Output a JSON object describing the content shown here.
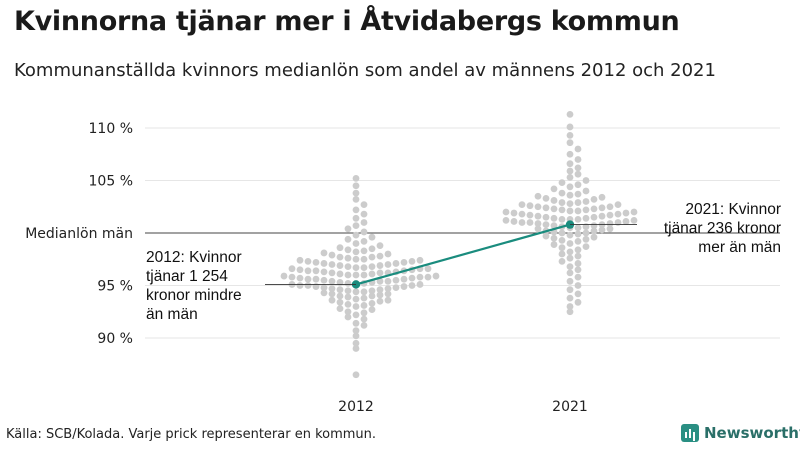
{
  "header": {
    "title": "Kvinnorna tjänar mer i Åtvidabergs kommun",
    "subtitle": "Kommunanställda kvinnors medianlön som andel av männens 2012 och 2021"
  },
  "footer": {
    "source": "Källa: SCB/Kolada. Varje prick representerar en kommun.",
    "brand": "Newsworthy"
  },
  "chart_data": {
    "type": "scatter",
    "title": "Kvinnorna tjänar mer i Åtvidabergs kommun",
    "subtitle": "Kommunanställda kvinnors medianlön som andel av männens 2012 och 2021",
    "categories": [
      "2012",
      "2021"
    ],
    "ylim": [
      86,
      112
    ],
    "y_ticks": [
      {
        "value": 110,
        "label": "110 %"
      },
      {
        "value": 105,
        "label": "105 %"
      },
      {
        "value": 100,
        "label": "Medianlön män"
      },
      {
        "value": 95,
        "label": "95 %"
      },
      {
        "value": 90,
        "label": "90 %"
      }
    ],
    "grid": true,
    "reference_line": {
      "value": 100,
      "label": "Medianlön män"
    },
    "highlight": {
      "name": "Åtvidabergs kommun",
      "color": "#1a8c7e",
      "points": [
        {
          "x": "2012",
          "y": 95.1
        },
        {
          "x": "2021",
          "y": 100.8
        }
      ]
    },
    "annotations": [
      {
        "x": "2012",
        "lines": [
          "2012: Kvinnor",
          "tjänar 1 254",
          "kronor mindre",
          "än män"
        ]
      },
      {
        "x": "2021",
        "lines": [
          "2021: Kvinnor",
          "tjänar 236 kronor",
          "mer än män"
        ]
      }
    ],
    "series": [
      {
        "x": "2012",
        "color": "#cccccc",
        "values": [
          86.5,
          89.0,
          89.5,
          90.2,
          90.7,
          91.2,
          91.4,
          91.8,
          92.0,
          92.2,
          92.4,
          92.5,
          92.7,
          92.8,
          93.0,
          93.1,
          93.2,
          93.3,
          93.4,
          93.5,
          93.6,
          93.6,
          93.7,
          93.8,
          93.9,
          94.0,
          94.0,
          94.1,
          94.2,
          94.2,
          94.3,
          94.4,
          94.4,
          94.5,
          94.5,
          94.6,
          94.6,
          94.7,
          94.7,
          94.8,
          94.8,
          94.9,
          94.9,
          95.0,
          95.0,
          95.0,
          95.1,
          95.1,
          95.2,
          95.2,
          95.2,
          95.3,
          95.3,
          95.4,
          95.4,
          95.4,
          95.5,
          95.5,
          95.6,
          95.6,
          95.6,
          95.7,
          95.7,
          95.8,
          95.8,
          95.8,
          95.9,
          95.9,
          96.0,
          96.0,
          96.0,
          96.1,
          96.1,
          96.2,
          96.2,
          96.2,
          96.3,
          96.3,
          96.4,
          96.4,
          96.4,
          96.5,
          96.5,
          96.6,
          96.6,
          96.6,
          96.7,
          96.7,
          96.8,
          96.8,
          96.9,
          96.9,
          97.0,
          97.0,
          97.1,
          97.1,
          97.2,
          97.2,
          97.3,
          97.3,
          97.4,
          97.4,
          97.5,
          97.5,
          97.6,
          97.7,
          97.7,
          97.8,
          97.9,
          98.0,
          98.1,
          98.2,
          98.3,
          98.4,
          98.5,
          98.6,
          98.8,
          99.0,
          99.2,
          99.4,
          99.6,
          99.8,
          100.1,
          100.4,
          100.7,
          101.0,
          101.4,
          101.8,
          102.2,
          102.7,
          103.2,
          103.8,
          104.5,
          105.2
        ]
      },
      {
        "x": "2021",
        "color": "#cccccc",
        "values": [
          92.5,
          93.0,
          93.4,
          93.8,
          94.2,
          94.6,
          95.0,
          95.4,
          95.8,
          96.2,
          96.5,
          96.8,
          97.1,
          97.3,
          97.6,
          97.8,
          98.0,
          98.2,
          98.4,
          98.6,
          98.7,
          98.9,
          99.0,
          99.2,
          99.3,
          99.4,
          99.5,
          99.6,
          99.7,
          99.8,
          99.9,
          100.0,
          100.0,
          100.1,
          100.2,
          100.2,
          100.3,
          100.4,
          100.4,
          100.5,
          100.5,
          100.6,
          100.6,
          100.7,
          100.7,
          100.8,
          100.8,
          100.9,
          100.9,
          101.0,
          101.0,
          101.0,
          101.1,
          101.1,
          101.2,
          101.2,
          101.3,
          101.3,
          101.3,
          101.4,
          101.4,
          101.5,
          101.5,
          101.6,
          101.6,
          101.7,
          101.7,
          101.8,
          101.8,
          101.9,
          101.9,
          102.0,
          102.0,
          102.1,
          102.1,
          102.2,
          102.2,
          102.3,
          102.3,
          102.4,
          102.4,
          102.5,
          102.5,
          102.6,
          102.7,
          102.7,
          102.8,
          102.9,
          102.9,
          103.0,
          103.1,
          103.2,
          103.3,
          103.4,
          103.5,
          103.6,
          103.7,
          103.8,
          104.0,
          104.2,
          104.4,
          104.6,
          104.8,
          105.0,
          105.3,
          105.6,
          105.9,
          106.2,
          106.6,
          107.0,
          107.5,
          108.0,
          108.6,
          109.3,
          110.1,
          111.3
        ]
      }
    ]
  }
}
